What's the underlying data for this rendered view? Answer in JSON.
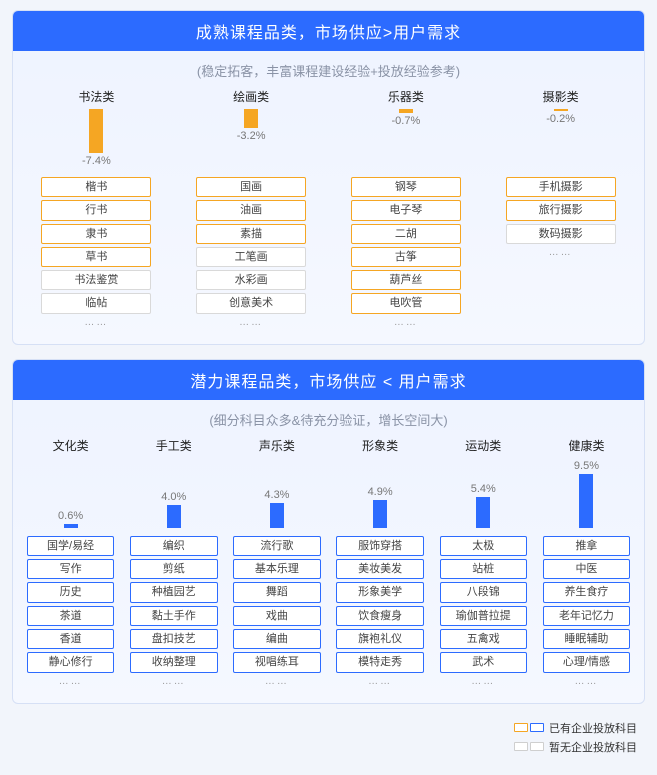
{
  "colors": {
    "orange": "#f5a623",
    "blue": "#2c6bff",
    "grey_border": "#d9d9d9",
    "text_grey": "#8a93a6"
  },
  "panel1": {
    "title": "成熟课程品类，市场供应>用户需求",
    "subtitle": "(稳定拓客，丰富课程建设经验+投放经验参考)",
    "bar_zone_height": 60,
    "bar_max_abs": 7.4,
    "bar_color": "#f5a623",
    "categories": [
      {
        "label": "书法类",
        "value": -7.4,
        "value_text": "-7.4%",
        "items": [
          {
            "text": "楷书",
            "has": true
          },
          {
            "text": "行书",
            "has": true
          },
          {
            "text": "隶书",
            "has": true
          },
          {
            "text": "草书",
            "has": true
          },
          {
            "text": "书法鉴赏",
            "has": false
          },
          {
            "text": "临帖",
            "has": false
          }
        ]
      },
      {
        "label": "绘画类",
        "value": -3.2,
        "value_text": "-3.2%",
        "items": [
          {
            "text": "国画",
            "has": true
          },
          {
            "text": "油画",
            "has": true
          },
          {
            "text": "素描",
            "has": true
          },
          {
            "text": "工笔画",
            "has": false
          },
          {
            "text": "水彩画",
            "has": false
          },
          {
            "text": "创意美术",
            "has": false
          }
        ]
      },
      {
        "label": "乐器类",
        "value": -0.7,
        "value_text": "-0.7%",
        "items": [
          {
            "text": "钢琴",
            "has": true
          },
          {
            "text": "电子琴",
            "has": true
          },
          {
            "text": "二胡",
            "has": true
          },
          {
            "text": "古筝",
            "has": true
          },
          {
            "text": "葫芦丝",
            "has": true
          },
          {
            "text": "电吹管",
            "has": true
          }
        ]
      },
      {
        "label": "摄影类",
        "value": -0.2,
        "value_text": "-0.2%",
        "items": [
          {
            "text": "手机摄影",
            "has": true
          },
          {
            "text": "旅行摄影",
            "has": true
          },
          {
            "text": "数码摄影",
            "has": false
          }
        ]
      }
    ],
    "ellipsis": "……"
  },
  "panel2": {
    "title": "潜力课程品类，市场供应 < 用户需求",
    "subtitle": "(细分科目众多&待充分验证，增长空间大)",
    "bar_zone_height": 70,
    "bar_max_abs": 9.5,
    "bar_color": "#2c6bff",
    "categories": [
      {
        "label": "文化类",
        "value": 0.6,
        "value_text": "0.6%",
        "items": [
          {
            "text": "国学/易经",
            "has": true
          },
          {
            "text": "写作",
            "has": true
          },
          {
            "text": "历史",
            "has": true
          },
          {
            "text": "茶道",
            "has": true
          },
          {
            "text": "香道",
            "has": true
          },
          {
            "text": "静心修行",
            "has": true
          }
        ]
      },
      {
        "label": "手工类",
        "value": 4.0,
        "value_text": "4.0%",
        "items": [
          {
            "text": "编织",
            "has": true
          },
          {
            "text": "剪纸",
            "has": true
          },
          {
            "text": "种植园艺",
            "has": true
          },
          {
            "text": "黏土手作",
            "has": true
          },
          {
            "text": "盘扣技艺",
            "has": true
          },
          {
            "text": "收纳整理",
            "has": true
          }
        ]
      },
      {
        "label": "声乐类",
        "value": 4.3,
        "value_text": "4.3%",
        "items": [
          {
            "text": "流行歌",
            "has": true
          },
          {
            "text": "基本乐理",
            "has": true
          },
          {
            "text": "舞蹈",
            "has": true
          },
          {
            "text": "戏曲",
            "has": true
          },
          {
            "text": "编曲",
            "has": true
          },
          {
            "text": "视唱练耳",
            "has": true
          }
        ]
      },
      {
        "label": "形象类",
        "value": 4.9,
        "value_text": "4.9%",
        "items": [
          {
            "text": "服饰穿搭",
            "has": true
          },
          {
            "text": "美妆美发",
            "has": true
          },
          {
            "text": "形象美学",
            "has": true
          },
          {
            "text": "饮食瘦身",
            "has": true
          },
          {
            "text": "旗袍礼仪",
            "has": true
          },
          {
            "text": "模特走秀",
            "has": true
          }
        ]
      },
      {
        "label": "运动类",
        "value": 5.4,
        "value_text": "5.4%",
        "items": [
          {
            "text": "太极",
            "has": true
          },
          {
            "text": "站桩",
            "has": true
          },
          {
            "text": "八段锦",
            "has": true
          },
          {
            "text": "瑜伽普拉提",
            "has": true
          },
          {
            "text": "五禽戏",
            "has": true
          },
          {
            "text": "武术",
            "has": true
          }
        ]
      },
      {
        "label": "健康类",
        "value": 9.5,
        "value_text": "9.5%",
        "items": [
          {
            "text": "推拿",
            "has": true
          },
          {
            "text": "中医",
            "has": true
          },
          {
            "text": "养生食疗",
            "has": true
          },
          {
            "text": "老年记忆力",
            "has": true
          },
          {
            "text": "睡眠辅助",
            "has": true
          },
          {
            "text": "心理/情感",
            "has": true
          }
        ]
      }
    ],
    "ellipsis": "……"
  },
  "legend": {
    "has_text": "已有企业投放科目",
    "none_text": "暂无企业投放科目",
    "orange": "#f5a623",
    "blue": "#2c6bff",
    "grey": "#cfcfcf"
  }
}
